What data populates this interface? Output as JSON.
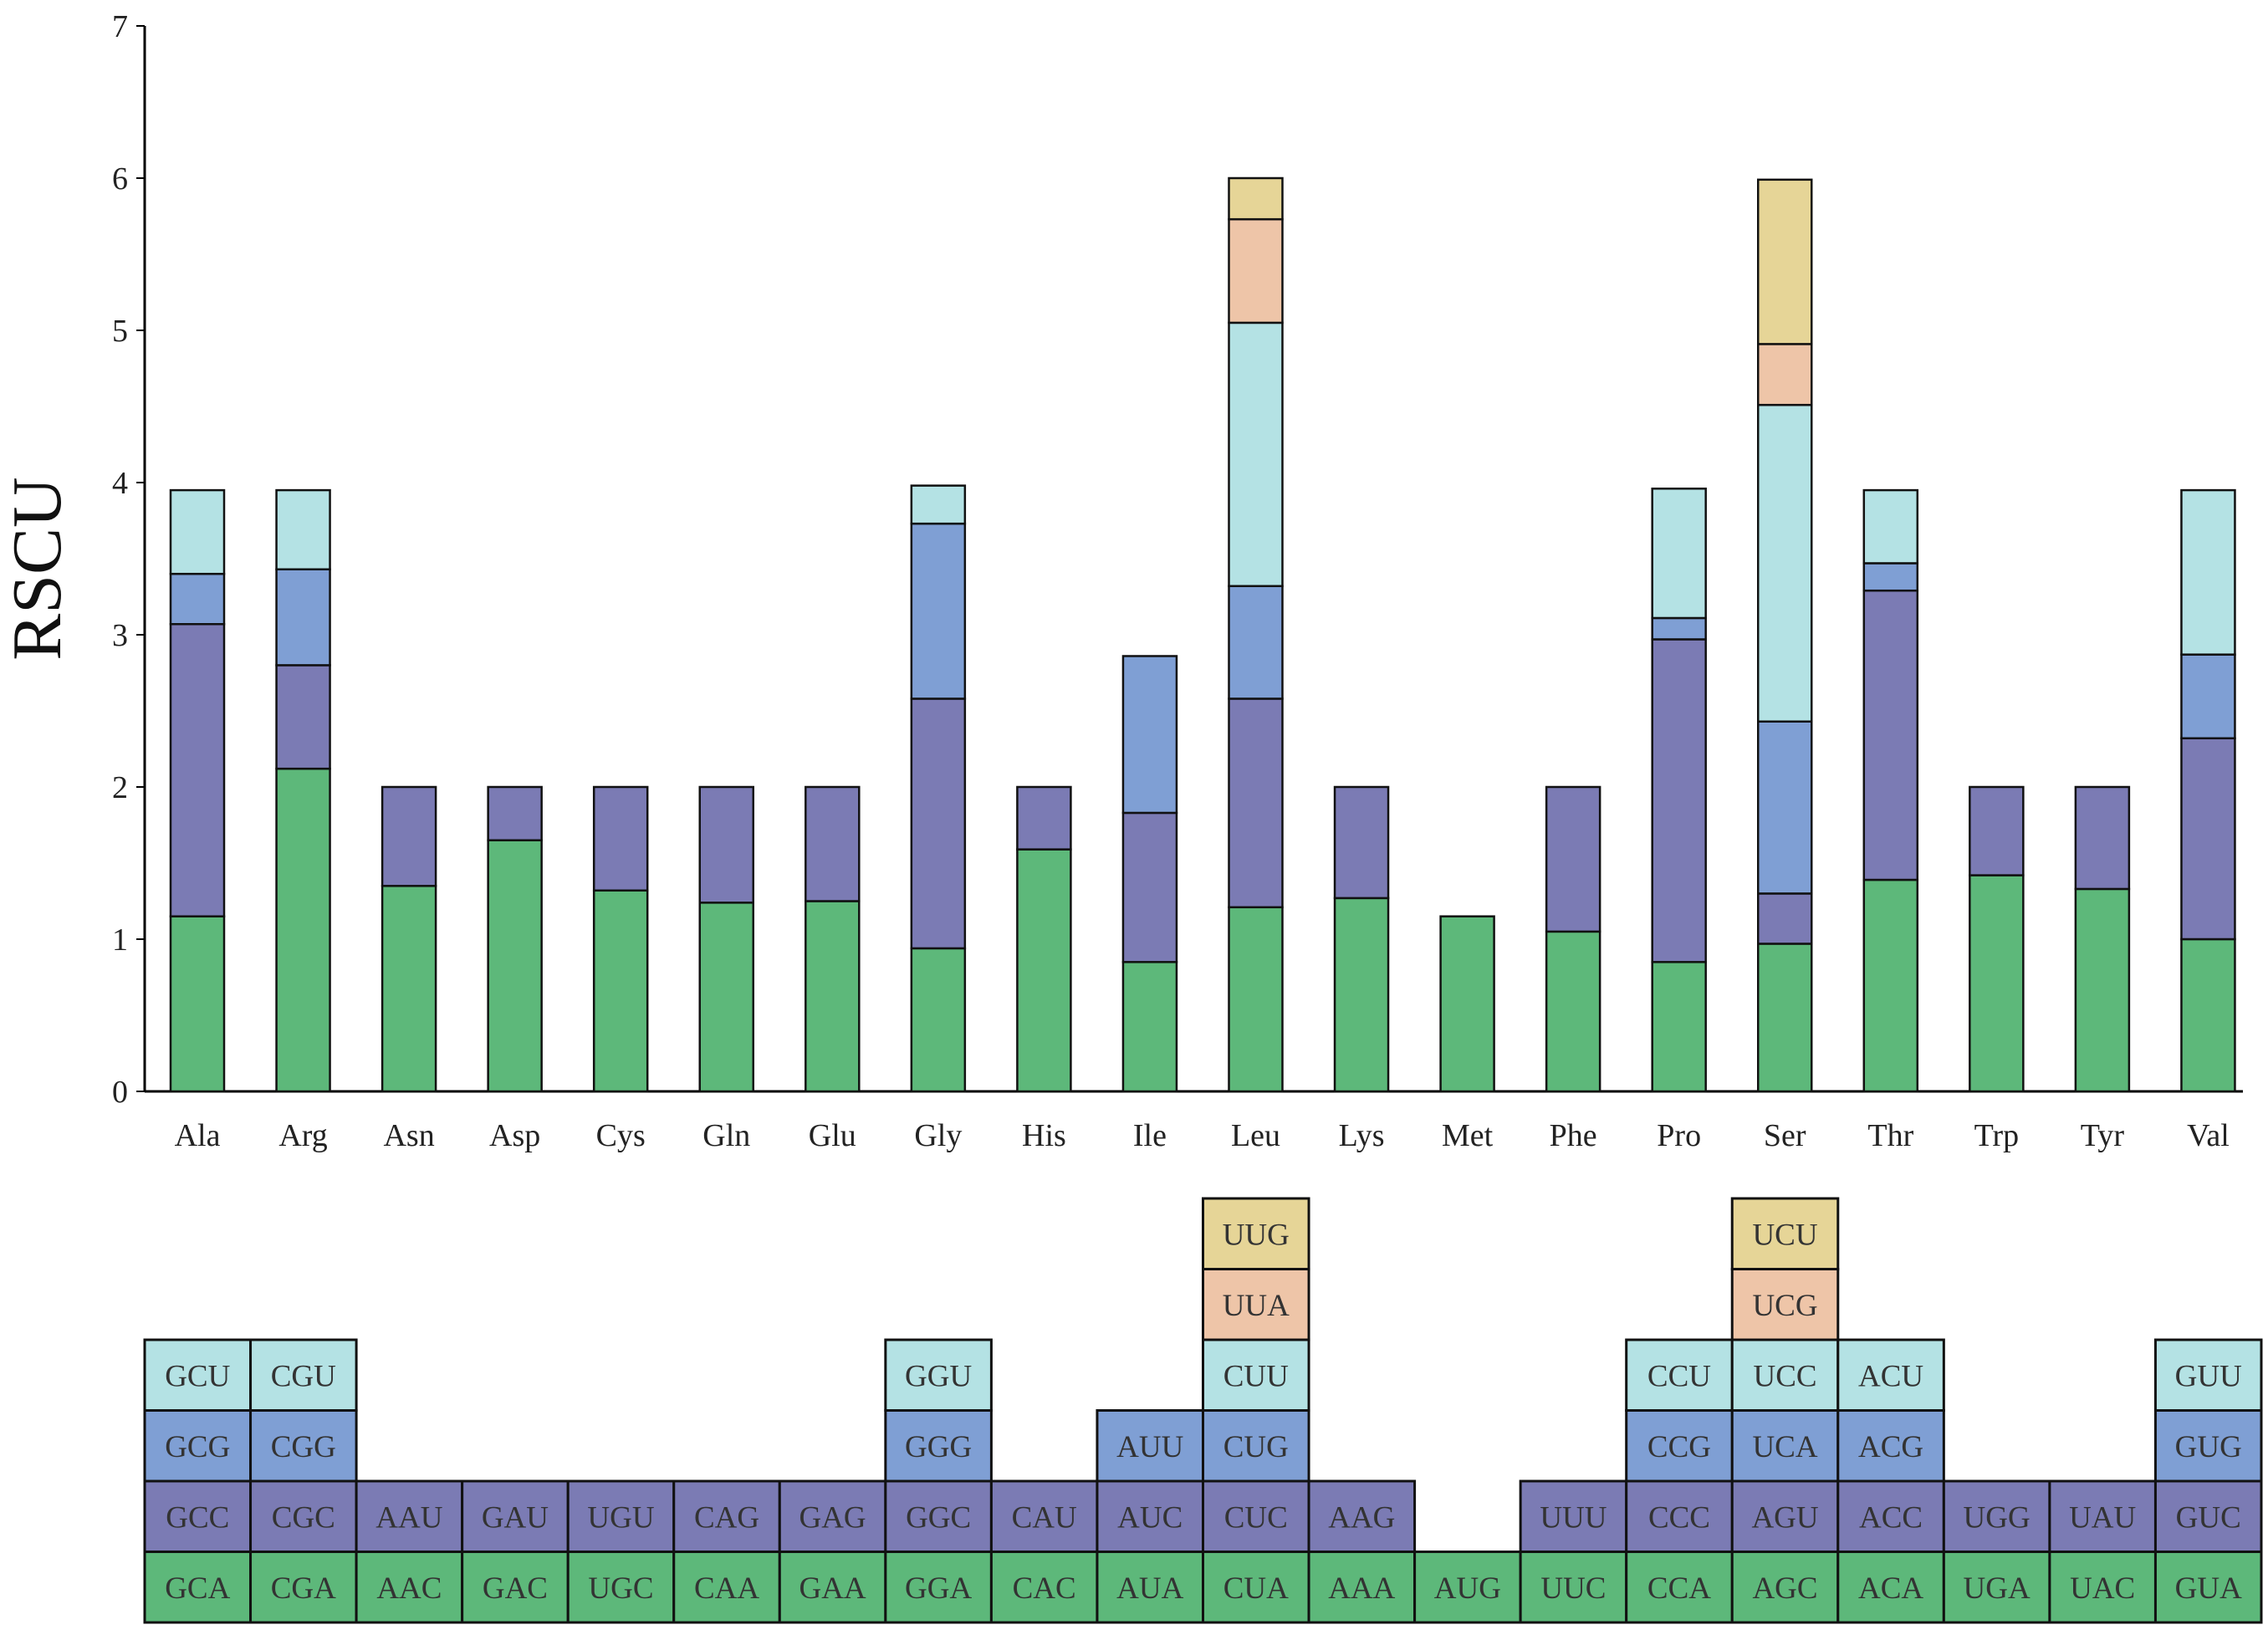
{
  "chart_data": {
    "type": "bar",
    "stacked": true,
    "title": "",
    "xlabel": "",
    "ylabel": "RSCU",
    "ylim": [
      0,
      7
    ],
    "yticks": [
      0,
      1,
      2,
      3,
      4,
      5,
      6,
      7
    ],
    "grid": false,
    "colors": [
      "#5db87a",
      "#7b7bb4",
      "#7f9fd4",
      "#b4e2e4",
      "#eec5a8",
      "#e6d597"
    ],
    "categories": [
      "Ala",
      "Arg",
      "Asn",
      "Asp",
      "Cys",
      "Gln",
      "Glu",
      "Gly",
      "His",
      "Ile",
      "Leu",
      "Lys",
      "Met",
      "Phe",
      "Pro",
      "Ser",
      "Thr",
      "Trp",
      "Tyr",
      "Val"
    ],
    "stacks": [
      {
        "amino_acid": "Ala",
        "codons": [
          "GCA",
          "GCC",
          "GCG",
          "GCU"
        ],
        "values": [
          1.15,
          1.92,
          0.33,
          0.55
        ]
      },
      {
        "amino_acid": "Arg",
        "codons": [
          "CGA",
          "CGC",
          "CGG",
          "CGU"
        ],
        "values": [
          2.12,
          0.68,
          0.63,
          0.52
        ]
      },
      {
        "amino_acid": "Asn",
        "codons": [
          "AAC",
          "AAU"
        ],
        "values": [
          1.35,
          0.65
        ]
      },
      {
        "amino_acid": "Asp",
        "codons": [
          "GAC",
          "GAU"
        ],
        "values": [
          1.65,
          0.35
        ]
      },
      {
        "amino_acid": "Cys",
        "codons": [
          "UGC",
          "UGU"
        ],
        "values": [
          1.32,
          0.68
        ]
      },
      {
        "amino_acid": "Gln",
        "codons": [
          "CAA",
          "CAG"
        ],
        "values": [
          1.24,
          0.76
        ]
      },
      {
        "amino_acid": "Glu",
        "codons": [
          "GAA",
          "GAG"
        ],
        "values": [
          1.25,
          0.75
        ]
      },
      {
        "amino_acid": "Gly",
        "codons": [
          "GGA",
          "GGC",
          "GGG",
          "GGU"
        ],
        "values": [
          0.94,
          1.64,
          1.15,
          0.25
        ]
      },
      {
        "amino_acid": "His",
        "codons": [
          "CAC",
          "CAU"
        ],
        "values": [
          1.59,
          0.41
        ]
      },
      {
        "amino_acid": "Ile",
        "codons": [
          "AUA",
          "AUC",
          "AUU"
        ],
        "values": [
          0.85,
          0.98,
          1.03
        ]
      },
      {
        "amino_acid": "Leu",
        "codons": [
          "CUA",
          "CUC",
          "CUG",
          "CUU",
          "UUA",
          "UUG"
        ],
        "values": [
          1.21,
          1.37,
          0.74,
          1.73,
          0.68,
          0.27
        ]
      },
      {
        "amino_acid": "Lys",
        "codons": [
          "AAA",
          "AAG"
        ],
        "values": [
          1.27,
          0.73
        ]
      },
      {
        "amino_acid": "Met",
        "codons": [
          "AUG"
        ],
        "values": [
          1.15
        ]
      },
      {
        "amino_acid": "Phe",
        "codons": [
          "UUC",
          "UUU"
        ],
        "values": [
          1.05,
          0.95
        ]
      },
      {
        "amino_acid": "Pro",
        "codons": [
          "CCA",
          "CCC",
          "CCG",
          "CCU"
        ],
        "values": [
          0.85,
          2.12,
          0.14,
          0.85
        ]
      },
      {
        "amino_acid": "Ser",
        "codons": [
          "AGC",
          "AGU",
          "UCA",
          "UCC",
          "UCG",
          "UCU"
        ],
        "values": [
          0.97,
          0.33,
          1.13,
          2.08,
          0.4,
          1.08
        ]
      },
      {
        "amino_acid": "Thr",
        "codons": [
          "ACA",
          "ACC",
          "ACG",
          "ACU"
        ],
        "values": [
          1.39,
          1.9,
          0.18,
          0.48
        ]
      },
      {
        "amino_acid": "Trp",
        "codons": [
          "UGA",
          "UGG"
        ],
        "values": [
          1.42,
          0.58
        ]
      },
      {
        "amino_acid": "Tyr",
        "codons": [
          "UAC",
          "UAU"
        ],
        "values": [
          1.33,
          0.67
        ]
      },
      {
        "amino_acid": "Val",
        "codons": [
          "GUA",
          "GUC",
          "GUG",
          "GUU"
        ],
        "values": [
          1.0,
          1.32,
          0.55,
          1.08
        ]
      }
    ]
  }
}
